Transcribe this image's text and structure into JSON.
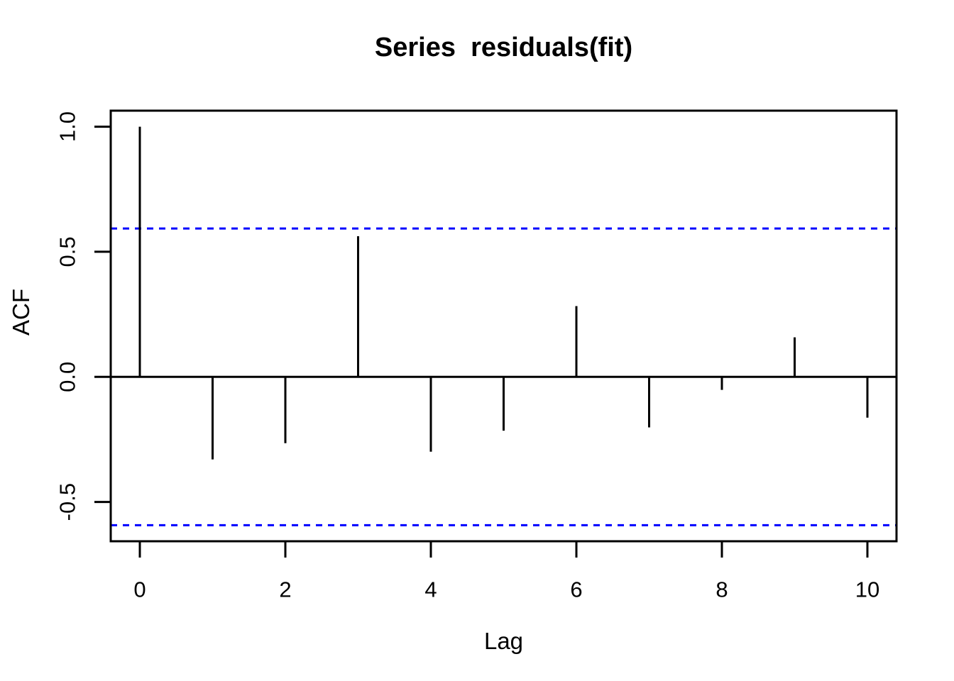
{
  "page": {
    "background": "#ffffff",
    "kind": "R autocorrelation (ACF) plot"
  },
  "chart_data": {
    "type": "stem",
    "title": "Series  residuals(fit)",
    "xlabel": "Lag",
    "ylabel": "ACF",
    "x": [
      0,
      1,
      2,
      3,
      4,
      5,
      6,
      7,
      8,
      9,
      10
    ],
    "values": [
      1.0,
      -0.33,
      -0.265,
      0.562,
      -0.299,
      -0.215,
      0.283,
      -0.202,
      -0.052,
      0.158,
      -0.163
    ],
    "confidence_level": 0.593,
    "confidence_bounds": [
      0.593,
      -0.593
    ],
    "xlim": [
      -0.4,
      10.4
    ],
    "ylim": [
      -0.657,
      1.064
    ],
    "x_ticks": [
      0,
      2,
      4,
      6,
      8,
      10
    ],
    "x_tick_labels": [
      "0",
      "2",
      "4",
      "6",
      "8",
      "10"
    ],
    "y_ticks": [
      -0.5,
      0.0,
      0.5,
      1.0
    ],
    "y_tick_labels": [
      "-0.5",
      "0.0",
      "0.5",
      "1.0"
    ],
    "zero_line": 0.0,
    "grid": false,
    "legend": null,
    "colors": {
      "stem": "#000000",
      "axis": "#000000",
      "confidence_line": "#0000ff",
      "background": "#ffffff"
    },
    "confidence_line_style": "dashed"
  }
}
